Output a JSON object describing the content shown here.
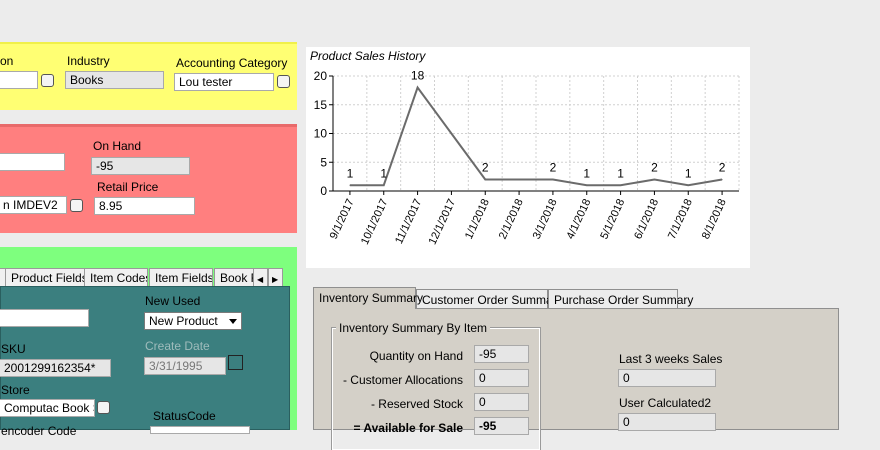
{
  "yellow": {
    "label_on": "on",
    "industry_label": "Industry",
    "industry_value": "Books",
    "accounting_label": "Accounting Category",
    "accounting_value": "Lou tester"
  },
  "red": {
    "on_hand_label": "On Hand",
    "on_hand_value": "-95",
    "store_value": "n IMDEV2",
    "retail_label": "Retail Price",
    "retail_value": "8.95"
  },
  "tabs": [
    "Product Fields",
    "Item Codes",
    "Item Fields",
    "Book F"
  ],
  "teal": {
    "new_used_label": "New Used",
    "new_used_value": "New Product",
    "sku_label": "SKU",
    "sku_value": "2001299162354*",
    "create_date_label": "Create Date",
    "create_date_value": "3/31/1995",
    "store_label": "Store",
    "store_value": "Computac Book Sho",
    "status_label": "StatusCode",
    "partial_label": "encoder Code"
  },
  "chart_data": {
    "type": "line",
    "title": "Product Sales History",
    "x": [
      "9/1/2017",
      "10/1/2017",
      "11/1/2017",
      "12/1/2017",
      "1/1/2018",
      "2/1/2018",
      "3/1/2018",
      "4/1/2018",
      "5/1/2018",
      "6/1/2018",
      "7/1/2018",
      "8/1/2018"
    ],
    "y": [
      1,
      1,
      18,
      10,
      2,
      2,
      2,
      1,
      1,
      2,
      1,
      2
    ],
    "data_labels": [
      "1",
      "1",
      "18",
      "",
      "2",
      "",
      "2",
      "1",
      "1",
      "2",
      "1",
      "2"
    ],
    "yticks": [
      "0",
      "5",
      "10",
      "15",
      "20"
    ],
    "ylim": [
      0,
      20
    ],
    "grid": true,
    "line_color": "#6b6b6b"
  },
  "inventory": {
    "tabs": [
      "Inventory Summary",
      "Customer Order Summary",
      "Purchase Order Summary"
    ],
    "group_title": "Inventory Summary By Item",
    "qty_label": "Quantity on Hand",
    "qty_value": "-95",
    "alloc_label": "- Customer Allocations",
    "alloc_value": "0",
    "reserved_label": "- Reserved Stock",
    "reserved_value": "0",
    "available_label": "= Available for Sale",
    "available_value": "-95",
    "last3_label": "Last 3 weeks Sales",
    "last3_value": "0",
    "user_calc_label": "User Calculated2",
    "user_calc_value": "0"
  }
}
